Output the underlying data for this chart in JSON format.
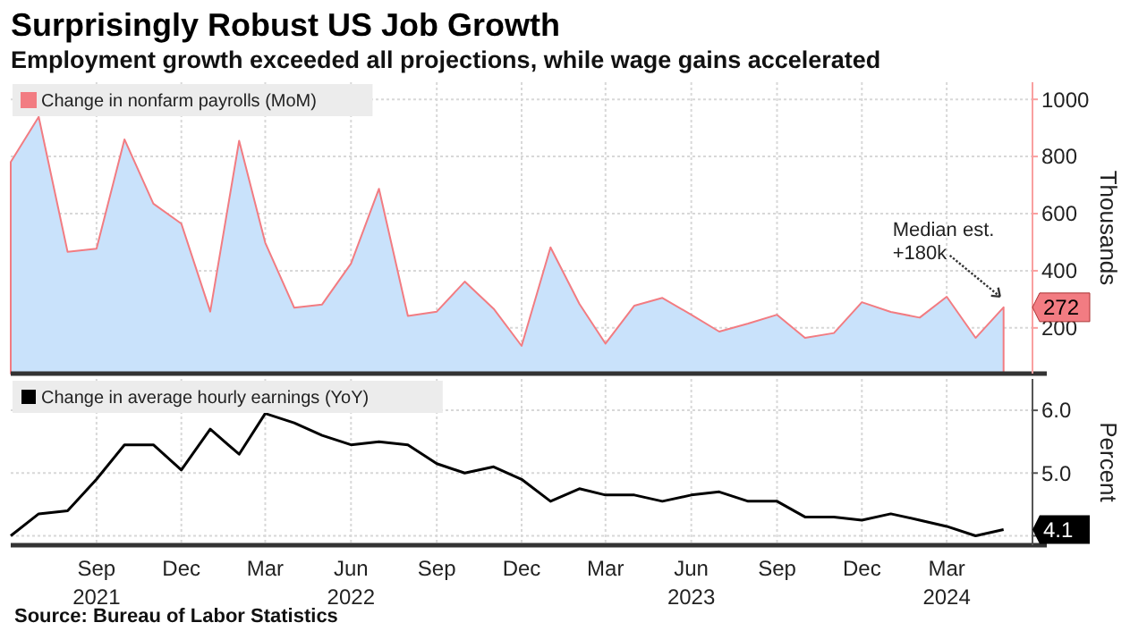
{
  "chart_data": [
    {
      "type": "area",
      "title": "Surprisingly Robust US Job Growth",
      "subtitle": "Employment growth exceeded all projections, while wage gains accelerated",
      "ylabel": "Thousands",
      "x": [
        "2021-06",
        "2021-07",
        "2021-08",
        "2021-09",
        "2021-10",
        "2021-11",
        "2021-12",
        "2022-01",
        "2022-02",
        "2022-03",
        "2022-04",
        "2022-05",
        "2022-06",
        "2022-07",
        "2022-08",
        "2022-09",
        "2022-10",
        "2022-11",
        "2022-12",
        "2023-01",
        "2023-02",
        "2023-03",
        "2023-04",
        "2023-05",
        "2023-06",
        "2023-07",
        "2023-08",
        "2023-09",
        "2023-10",
        "2023-11",
        "2023-12",
        "2024-01",
        "2024-02",
        "2024-03",
        "2024-04",
        "2024-05"
      ],
      "series": [
        {
          "name": "Change in nonfarm payrolls (MoM)",
          "color": "#c9e2fb",
          "values": [
            781,
            939,
            466,
            477,
            860,
            635,
            565,
            257,
            855,
            498,
            271,
            282,
            425,
            687,
            242,
            257,
            362,
            267,
            137,
            482,
            284,
            145,
            278,
            305,
            246,
            187,
            215,
            246,
            165,
            182,
            290,
            256,
            236,
            309,
            165,
            272
          ],
          "value_labels": [
            null,
            null,
            null,
            null,
            null,
            null,
            null,
            null,
            null,
            null,
            null,
            null,
            null,
            null,
            null,
            null,
            null,
            null,
            null,
            null,
            null,
            null,
            null,
            null,
            null,
            null,
            null,
            null,
            null,
            null,
            null,
            null,
            null,
            null,
            null,
            "272"
          ]
        }
      ],
      "xlim": [
        "2021-06",
        "2024-06"
      ],
      "xticks": [
        {
          "value": "2021-09",
          "label": null
        },
        {
          "value": "2021-12",
          "label": null
        },
        {
          "value": "2022-03",
          "label": null
        },
        {
          "value": "2022-06",
          "label": null
        },
        {
          "value": "2022-09",
          "label": null
        },
        {
          "value": "2022-12",
          "label": null
        },
        {
          "value": "2023-03",
          "label": null
        },
        {
          "value": "2023-06",
          "label": null
        },
        {
          "value": "2023-09",
          "label": null
        },
        {
          "value": "2023-12",
          "label": null
        },
        {
          "value": "2024-03",
          "label": null
        }
      ],
      "ylim": [
        40,
        1060
      ],
      "yticks": [
        200,
        400,
        600,
        800,
        1000
      ],
      "annotations": [
        {
          "text": "Median est.\n+180k",
          "x": "2024-05",
          "y": 272
        }
      ],
      "grid": true,
      "legend": "top left",
      "tick_labels": "y"
    },
    {
      "type": "line",
      "ylabel": "Percent",
      "x": [
        "2021-06",
        "2021-07",
        "2021-08",
        "2021-09",
        "2021-10",
        "2021-11",
        "2021-12",
        "2022-01",
        "2022-02",
        "2022-03",
        "2022-04",
        "2022-05",
        "2022-06",
        "2022-07",
        "2022-08",
        "2022-09",
        "2022-10",
        "2022-11",
        "2022-12",
        "2023-01",
        "2023-02",
        "2023-03",
        "2023-04",
        "2023-05",
        "2023-06",
        "2023-07",
        "2023-08",
        "2023-09",
        "2023-10",
        "2023-11",
        "2023-12",
        "2024-01",
        "2024-02",
        "2024-03",
        "2024-04",
        "2024-05"
      ],
      "series": [
        {
          "name": "Change in average hourly earnings (YoY)",
          "color": "#000000",
          "values": [
            4.0,
            4.35,
            4.4,
            4.9,
            5.45,
            5.45,
            5.05,
            5.7,
            5.3,
            5.95,
            5.8,
            5.6,
            5.45,
            5.5,
            5.45,
            5.15,
            5.0,
            5.1,
            4.9,
            4.55,
            4.75,
            4.65,
            4.65,
            4.55,
            4.65,
            4.7,
            4.55,
            4.55,
            4.3,
            4.3,
            4.25,
            4.35,
            4.25,
            4.15,
            4.0,
            4.1
          ],
          "value_labels": [
            null,
            null,
            null,
            null,
            null,
            null,
            null,
            null,
            null,
            null,
            null,
            null,
            null,
            null,
            null,
            null,
            null,
            null,
            null,
            null,
            null,
            null,
            null,
            null,
            null,
            null,
            null,
            null,
            null,
            null,
            null,
            null,
            null,
            null,
            null,
            "4.1"
          ]
        }
      ],
      "xlim": [
        "2021-06",
        "2024-06"
      ],
      "xticks": [
        {
          "value": "2021-09",
          "label": "Sep\n2021"
        },
        {
          "value": "2021-12",
          "label": "Dec"
        },
        {
          "value": "2022-03",
          "label": "Mar"
        },
        {
          "value": "2022-06",
          "label": "Jun\n2022"
        },
        {
          "value": "2022-09",
          "label": "Sep"
        },
        {
          "value": "2022-12",
          "label": "Dec"
        },
        {
          "value": "2023-03",
          "label": "Mar"
        },
        {
          "value": "2023-06",
          "label": "Jun\n2023"
        },
        {
          "value": "2023-09",
          "label": "Sep"
        },
        {
          "value": "2023-12",
          "label": "Dec"
        },
        {
          "value": "2024-03",
          "label": "Mar\n2024"
        }
      ],
      "ylim": [
        3.85,
        6.5
      ],
      "yticks": [
        {
          "value": 4,
          "label": null
        },
        {
          "value": 5,
          "label": "5.0"
        },
        {
          "value": 6,
          "label": "6.0"
        }
      ],
      "annotations": [
        "Source: Bureau of Labor Statistics"
      ],
      "grid": true,
      "legend": "top left"
    }
  ]
}
